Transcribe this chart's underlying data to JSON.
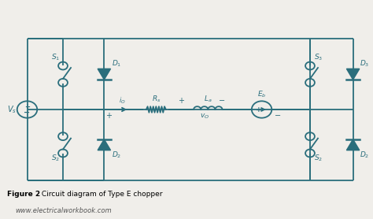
{
  "title_bold": "Figure 2",
  "title_rest": " Circuit diagram of Type E chopper",
  "website": "www.electricalworkbook.com",
  "circuit_color": "#2a6e7c",
  "bg_color": "#f0eeea",
  "line_width": 1.3,
  "figsize": [
    4.74,
    2.78
  ],
  "dpi": 100
}
